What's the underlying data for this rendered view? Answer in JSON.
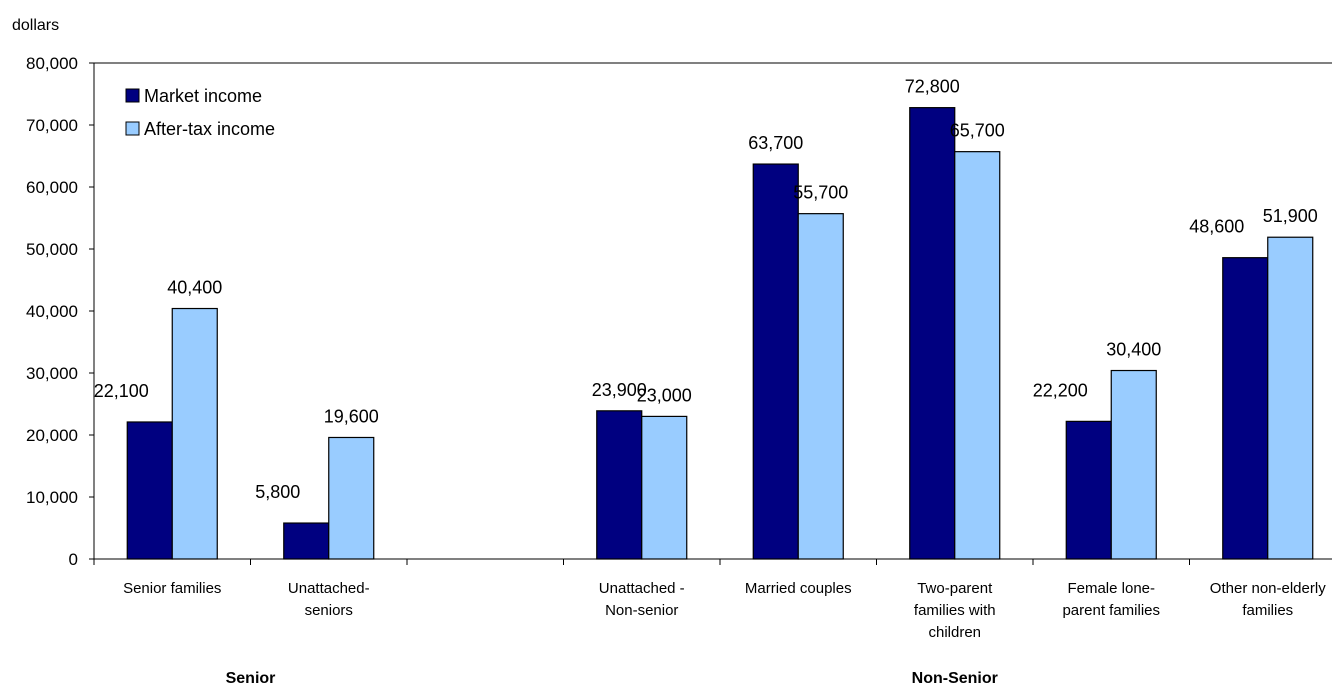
{
  "chart_data": {
    "type": "bar",
    "ylabel": "dollars",
    "ylim": [
      0,
      80000
    ],
    "yticks": [
      "0",
      "10,000",
      "20,000",
      "30,000",
      "40,000",
      "50,000",
      "60,000",
      "70,000",
      "80,000"
    ],
    "categories": [
      [
        "Senior families"
      ],
      [
        "Unattached-",
        "seniors"
      ],
      [],
      [
        "Unattached -",
        "Non-senior"
      ],
      [
        "Married couples"
      ],
      [
        "Two-parent",
        "families with",
        "children"
      ],
      [
        "Female lone-",
        "parent families"
      ],
      [
        "Other non-elderly",
        "families"
      ]
    ],
    "groups": [
      "Senior",
      "Non-Senior"
    ],
    "series": [
      {
        "name": "Market income",
        "color": "#000080",
        "values": [
          22100,
          5800,
          null,
          23900,
          63700,
          72800,
          22200,
          48600
        ],
        "labels": [
          "22,100",
          "5,800",
          "",
          "23,900",
          "63,700",
          "72,800",
          "22,200",
          "48,600"
        ]
      },
      {
        "name": "After-tax income",
        "color": "#99ccff",
        "values": [
          40400,
          19600,
          null,
          23000,
          55700,
          65700,
          30400,
          51900
        ],
        "labels": [
          "40,400",
          "19,600",
          "",
          "23,000",
          "55,700",
          "65,700",
          "30,400",
          "51,900"
        ]
      }
    ],
    "legend": "top-left"
  }
}
